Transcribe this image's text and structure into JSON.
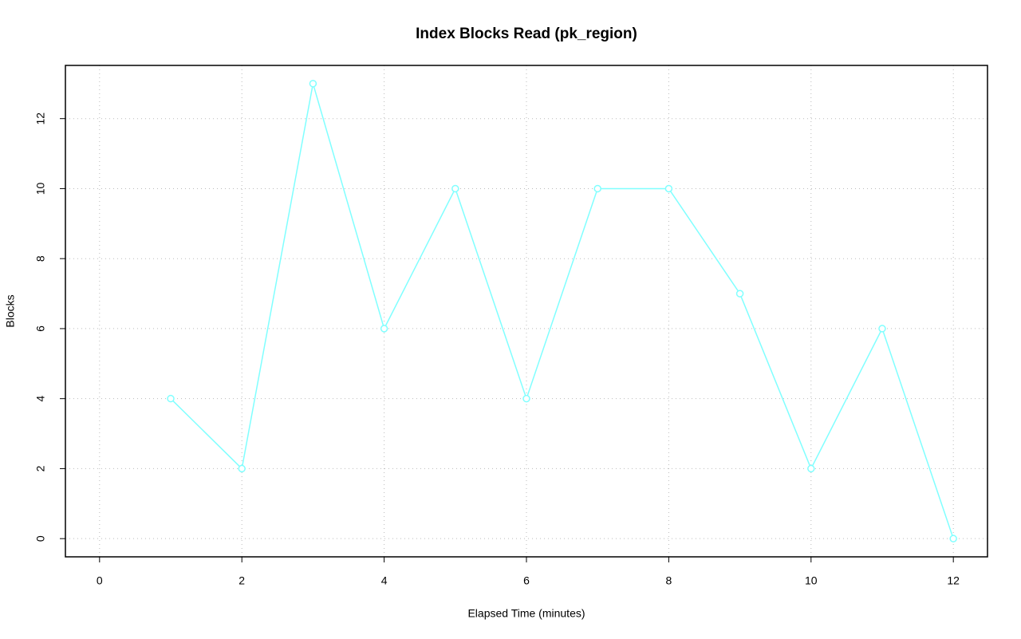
{
  "chart_data": {
    "type": "line",
    "title": "Index Blocks Read (pk_region)",
    "xlabel": "Elapsed Time (minutes)",
    "ylabel": "Blocks",
    "x": [
      1,
      2,
      3,
      4,
      5,
      6,
      7,
      8,
      9,
      10,
      11,
      12
    ],
    "series": [
      {
        "name": "Blocks",
        "color": "#80ffff",
        "values": [
          4,
          2,
          13,
          6,
          10,
          4,
          10,
          10,
          7,
          2,
          6,
          0
        ]
      }
    ],
    "xlim": [
      -0.48,
      12.48
    ],
    "xticks": [
      0,
      2,
      4,
      6,
      8,
      10,
      12
    ],
    "ylim": [
      -0.52,
      13.52
    ],
    "yticks": [
      0,
      2,
      4,
      6,
      8,
      10,
      12
    ],
    "grid": true,
    "markers": true
  }
}
